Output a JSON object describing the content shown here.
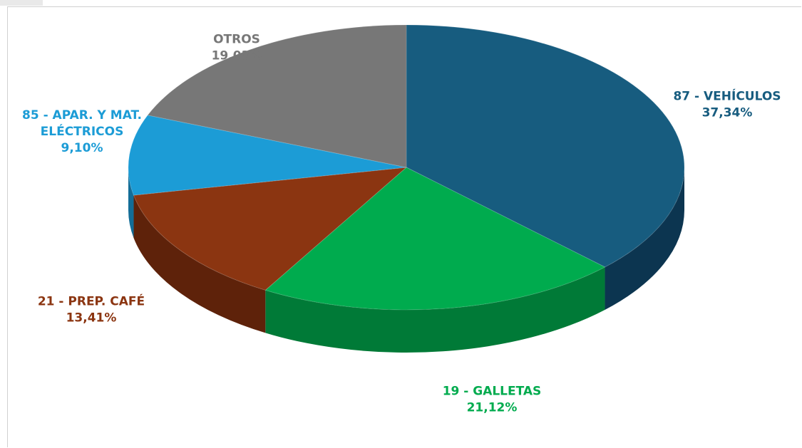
{
  "chart_data": {
    "type": "pie",
    "title": "",
    "slices": [
      {
        "name": "87 - VEHÍCULOS",
        "value": 37.34,
        "value_label": "37,34%",
        "color": "#175C7F",
        "side_color": "#0C3550"
      },
      {
        "name": "19 - GALLETAS",
        "value": 21.12,
        "value_label": "21,12%",
        "color": "#00AB4E",
        "side_color": "#007A37"
      },
      {
        "name": "21 - PREP. CAFÉ",
        "value": 13.41,
        "value_label": "13,41%",
        "color": "#8B3511",
        "side_color": "#5E220A"
      },
      {
        "name": "85 - APAR. Y MAT. ELÉCTRICOS",
        "label_lines": [
          "85 - APAR. Y MAT.",
          "ELÉCTRICOS"
        ],
        "value": 9.1,
        "value_label": "9,10%",
        "color": "#1C9CD6",
        "side_color": "#136D97"
      },
      {
        "name": "OTROS",
        "value": 19.03,
        "value_label": "19,03%",
        "color": "#777777",
        "side_color": "#4F4F4F"
      }
    ],
    "style": "3d-pie",
    "legend": "none"
  }
}
